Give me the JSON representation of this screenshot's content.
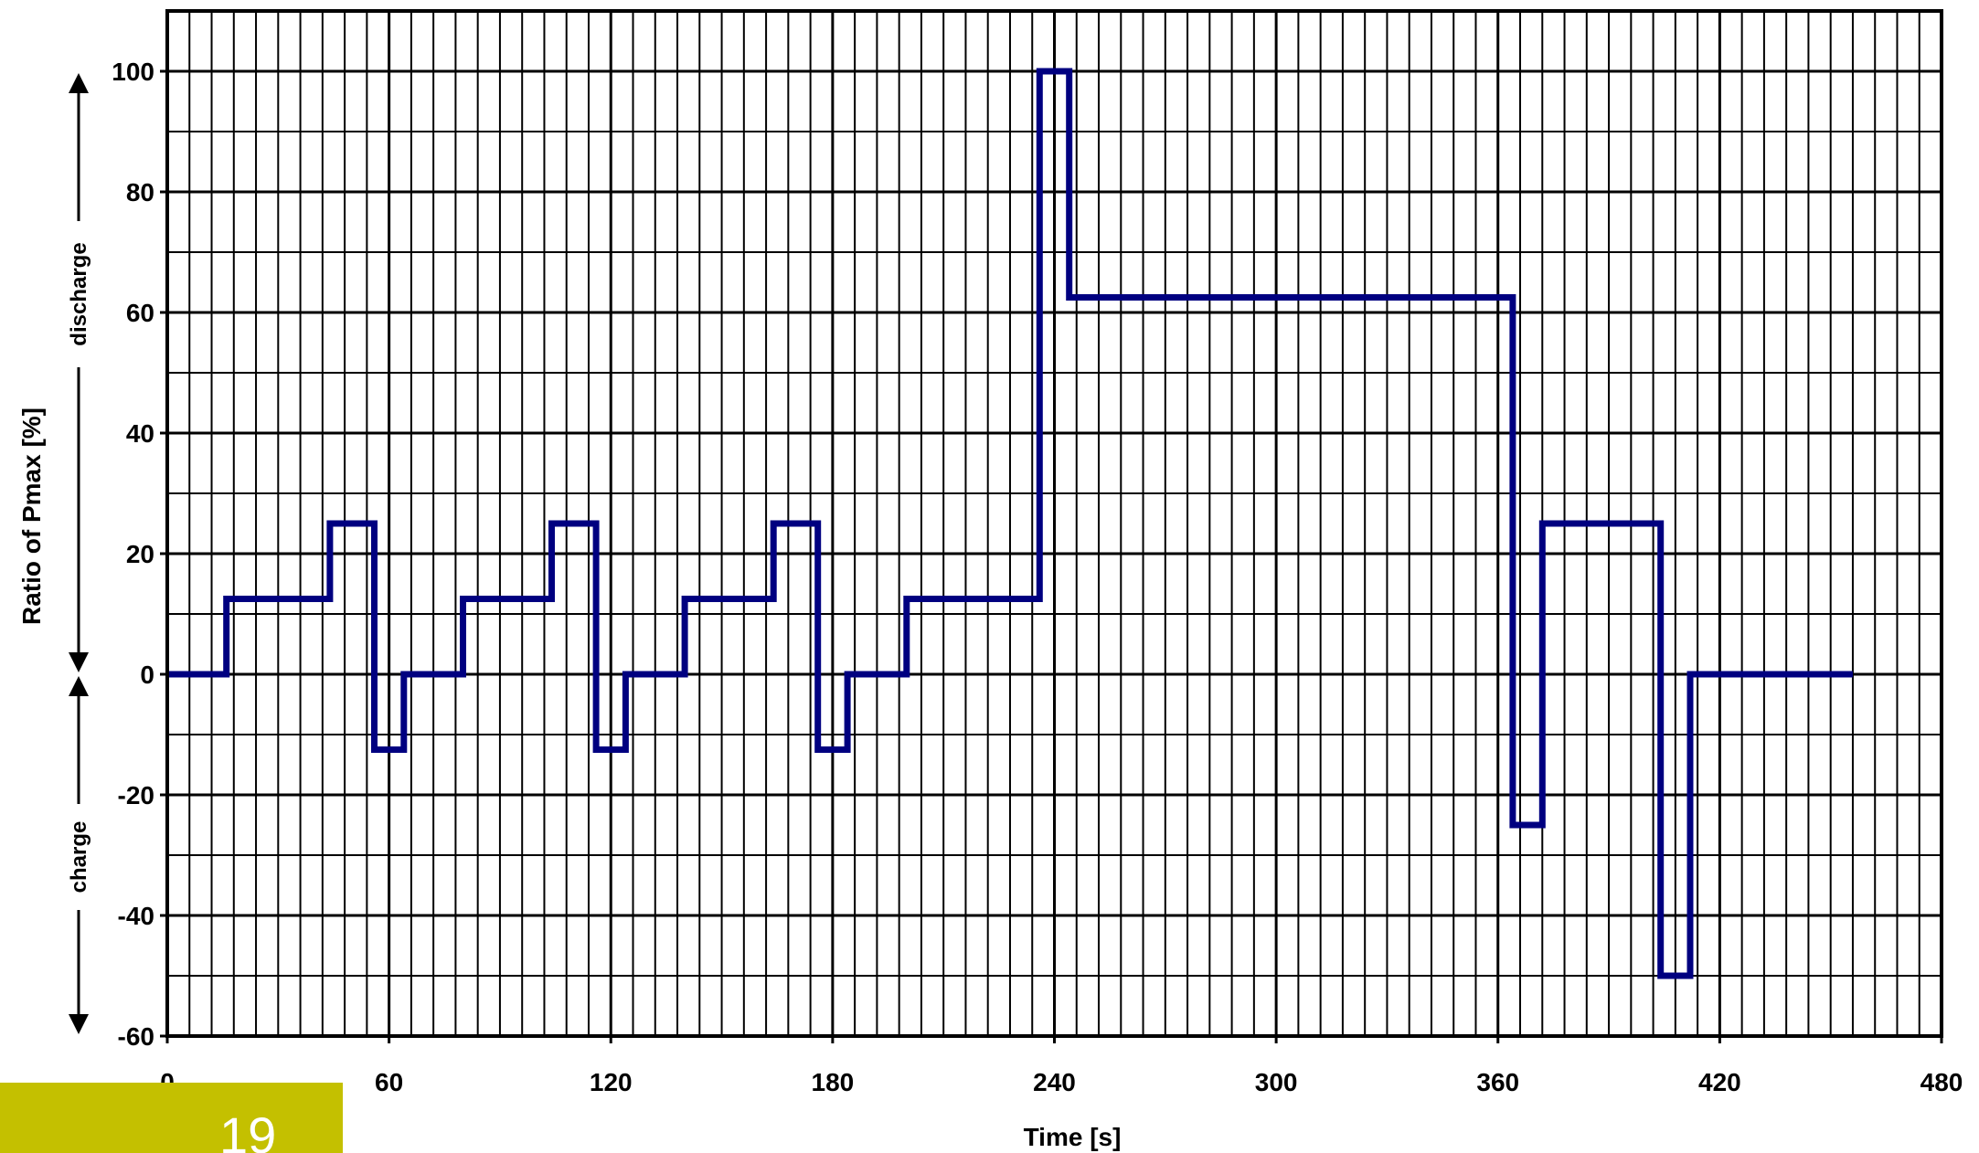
{
  "chart_data": {
    "type": "line",
    "step": true,
    "title": "",
    "xlabel": "Time  [s]",
    "ylabel": "Ratio of Pmax [%]",
    "xlim": [
      0,
      480
    ],
    "ylim": [
      -60,
      110
    ],
    "xticks": [
      0,
      60,
      120,
      180,
      240,
      300,
      360,
      420,
      480
    ],
    "xtick_labels": [
      "0",
      "60",
      "120",
      "180",
      "240",
      "300",
      "360",
      "420",
      "480"
    ],
    "yticks": [
      -60,
      -40,
      -20,
      0,
      20,
      40,
      60,
      80,
      100
    ],
    "ytick_labels": [
      "-60",
      "-40",
      "-20",
      "0",
      "20",
      "40",
      "60",
      "80",
      "100"
    ],
    "grid": true,
    "annotations": {
      "upper": "discharge",
      "lower": "charge"
    },
    "series": [
      {
        "color": "#000080",
        "points": [
          [
            0,
            0
          ],
          [
            16,
            0
          ],
          [
            16,
            12.5
          ],
          [
            44,
            12.5
          ],
          [
            44,
            25
          ],
          [
            56,
            25
          ],
          [
            56,
            -12.5
          ],
          [
            64,
            -12.5
          ],
          [
            64,
            0
          ],
          [
            80,
            0
          ],
          [
            80,
            12.5
          ],
          [
            104,
            12.5
          ],
          [
            104,
            25
          ],
          [
            116,
            25
          ],
          [
            116,
            -12.5
          ],
          [
            124,
            -12.5
          ],
          [
            124,
            0
          ],
          [
            140,
            0
          ],
          [
            140,
            12.5
          ],
          [
            164,
            12.5
          ],
          [
            164,
            25
          ],
          [
            176,
            25
          ],
          [
            176,
            -12.5
          ],
          [
            184,
            -12.5
          ],
          [
            184,
            0
          ],
          [
            200,
            0
          ],
          [
            200,
            12.5
          ],
          [
            236,
            12.5
          ],
          [
            236,
            100
          ],
          [
            244,
            100
          ],
          [
            244,
            62.5
          ],
          [
            364,
            62.5
          ],
          [
            364,
            -25
          ],
          [
            372,
            -25
          ],
          [
            372,
            25
          ],
          [
            404,
            25
          ],
          [
            404,
            -50
          ],
          [
            412,
            -50
          ],
          [
            412,
            0
          ],
          [
            456,
            0
          ]
        ]
      }
    ]
  },
  "footer": {
    "page_number": "19"
  }
}
